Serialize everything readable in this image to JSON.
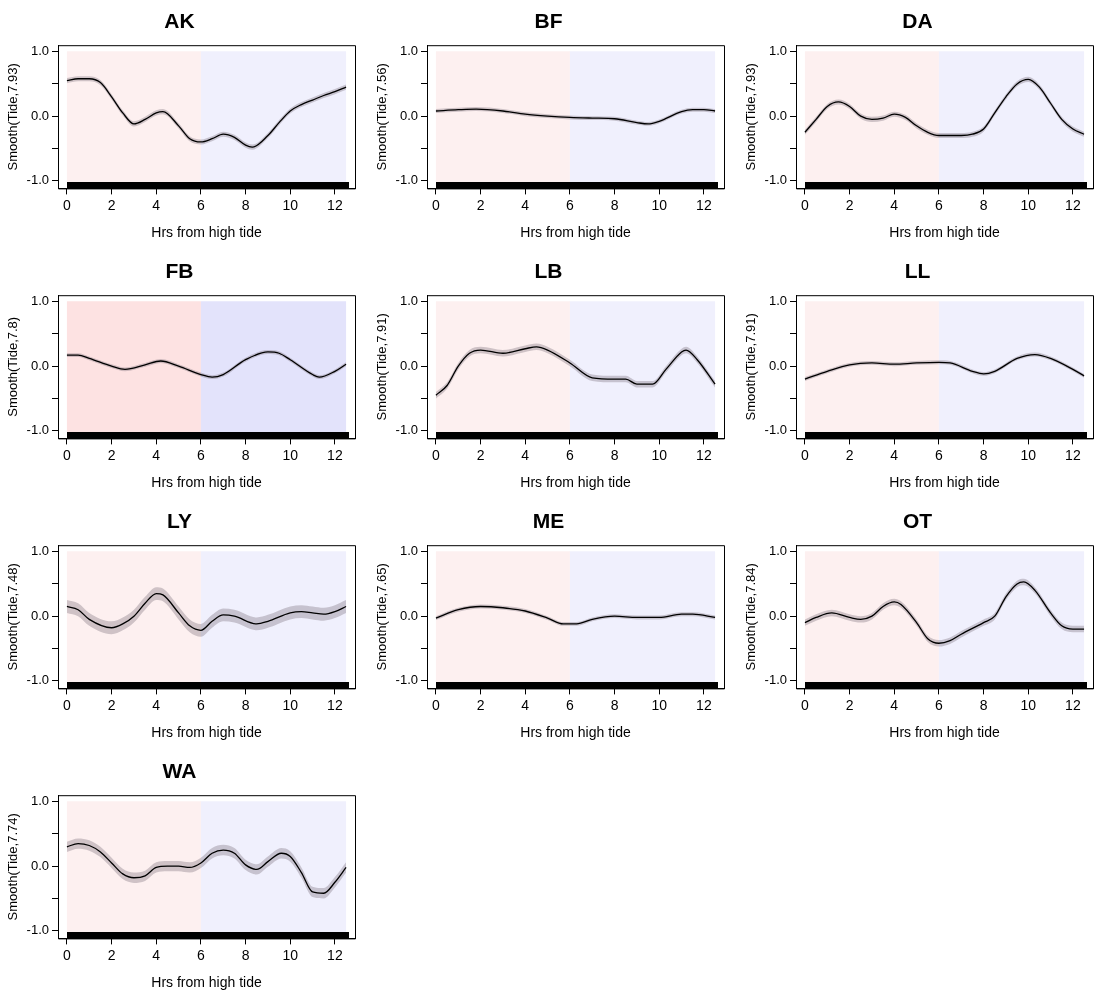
{
  "chart_data": [
    {
      "type": "line",
      "title": "AK",
      "xlabel": "Hrs from high tide",
      "ylabel": "Smooth(Tide,7.93)",
      "xlim": [
        -0.4,
        12.9
      ],
      "ylim": [
        -1.12,
        1.1
      ],
      "xticks": [
        0,
        2,
        4,
        6,
        8,
        10,
        12
      ],
      "yticks": [
        {
          "value": -1,
          "label": "-1.0"
        },
        {
          "value": -0.5,
          "label": null
        },
        {
          "value": 0,
          "label": "0.0"
        },
        {
          "value": 0.5,
          "label": null
        },
        {
          "value": 1,
          "label": "1.0"
        }
      ],
      "grid": false,
      "legend": false,
      "bands": [
        {
          "axis": "x",
          "from": 0,
          "to": 6,
          "color": "#fdf0f0"
        },
        {
          "axis": "x",
          "from": 6,
          "to": 12.5,
          "color": "#f0f0fd"
        }
      ],
      "x": [
        0,
        0.5,
        1,
        1.5,
        2,
        2.5,
        3,
        3.5,
        4,
        4.3,
        5,
        5.5,
        6,
        6.5,
        7,
        7.5,
        8,
        8.3,
        9,
        9.5,
        10,
        10.5,
        11,
        11.5,
        12,
        12.5
      ],
      "series": [
        {
          "color": "#000000",
          "values": [
            0.55,
            0.58,
            0.58,
            0.52,
            0.3,
            0.05,
            -0.12,
            -0.05,
            0.05,
            0.07,
            -0.15,
            -0.35,
            -0.4,
            -0.35,
            -0.28,
            -0.33,
            -0.45,
            -0.48,
            -0.3,
            -0.1,
            0.08,
            0.18,
            0.25,
            0.32,
            0.38,
            0.45
          ],
          "lower": [
            0.51,
            0.54,
            0.54,
            0.48,
            0.26,
            0.01,
            -0.16,
            -0.09,
            0.01,
            0.03,
            -0.19,
            -0.39,
            -0.44,
            -0.39,
            -0.32,
            -0.37,
            -0.49,
            -0.52,
            -0.34,
            -0.14,
            0.04,
            0.14,
            0.21,
            0.28,
            0.34,
            0.41
          ],
          "upper": [
            0.59,
            0.62,
            0.62,
            0.56,
            0.34,
            0.09,
            -0.08,
            -0.01,
            0.09,
            0.11,
            -0.11,
            -0.31,
            -0.36,
            -0.31,
            -0.24,
            -0.29,
            -0.41,
            -0.44,
            -0.26,
            -0.06,
            0.12,
            0.22,
            0.29,
            0.36,
            0.42,
            0.49
          ]
        }
      ]
    },
    {
      "type": "line",
      "title": "BF",
      "xlabel": "Hrs from high tide",
      "ylabel": "Smooth(Tide,7.56)",
      "xlim": [
        -0.4,
        12.9
      ],
      "ylim": [
        -1.12,
        1.1
      ],
      "xticks": [
        0,
        2,
        4,
        6,
        8,
        10,
        12
      ],
      "yticks": [
        {
          "value": -1,
          "label": "-1.0"
        },
        {
          "value": -0.5,
          "label": null
        },
        {
          "value": 0,
          "label": "0.0"
        },
        {
          "value": 0.5,
          "label": null
        },
        {
          "value": 1,
          "label": "1.0"
        }
      ],
      "grid": false,
      "legend": false,
      "bands": [
        {
          "axis": "x",
          "from": 0,
          "to": 6,
          "color": "#fdf0f0"
        },
        {
          "axis": "x",
          "from": 6,
          "to": 12.5,
          "color": "#f0f0fd"
        }
      ],
      "x": [
        0,
        1,
        1.8,
        3,
        4,
        5,
        6,
        7,
        8,
        9,
        9.5,
        10,
        11,
        11.5,
        12,
        12.5
      ],
      "series": [
        {
          "color": "#000000",
          "values": [
            0.08,
            0.1,
            0.11,
            0.08,
            0.03,
            0,
            -0.02,
            -0.03,
            -0.04,
            -0.1,
            -0.12,
            -0.08,
            0.07,
            0.1,
            0.1,
            0.08
          ],
          "lower": [
            0.05,
            0.07,
            0.08,
            0.05,
            0,
            -0.03,
            -0.05,
            -0.06,
            -0.07,
            -0.13,
            -0.15,
            -0.11,
            0.04,
            0.07,
            0.07,
            0.05
          ],
          "upper": [
            0.11,
            0.13,
            0.14,
            0.11,
            0.06,
            0.03,
            0.01,
            0,
            -0.01,
            -0.07,
            -0.09,
            -0.05,
            0.1,
            0.13,
            0.13,
            0.11
          ]
        }
      ]
    },
    {
      "type": "line",
      "title": "DA",
      "xlabel": "Hrs from high tide",
      "ylabel": "Smooth(Tide,7.93)",
      "xlim": [
        -0.4,
        12.9
      ],
      "ylim": [
        -1.12,
        1.1
      ],
      "xticks": [
        0,
        2,
        4,
        6,
        8,
        10,
        12
      ],
      "yticks": [
        {
          "value": -1,
          "label": "-1.0"
        },
        {
          "value": -0.5,
          "label": null
        },
        {
          "value": 0,
          "label": "0.0"
        },
        {
          "value": 0.5,
          "label": null
        },
        {
          "value": 1,
          "label": "1.0"
        }
      ],
      "grid": false,
      "legend": false,
      "bands": [
        {
          "axis": "x",
          "from": 0,
          "to": 6,
          "color": "#fdf0f0"
        },
        {
          "axis": "x",
          "from": 6,
          "to": 12.5,
          "color": "#f0f0fd"
        }
      ],
      "x": [
        0,
        0.5,
        1,
        1.5,
        2,
        2.5,
        3,
        3.5,
        4,
        4.5,
        5,
        5.5,
        6,
        7,
        7.5,
        8,
        8.5,
        9,
        9.5,
        10,
        10.5,
        11,
        11.5,
        12,
        12.5
      ],
      "series": [
        {
          "color": "#000000",
          "values": [
            -0.25,
            -0.05,
            0.15,
            0.22,
            0.15,
            0,
            -0.05,
            -0.03,
            0.03,
            -0.02,
            -0.15,
            -0.25,
            -0.3,
            -0.3,
            -0.28,
            -0.2,
            0.05,
            0.3,
            0.5,
            0.57,
            0.45,
            0.2,
            -0.05,
            -0.2,
            -0.28
          ],
          "lower": [
            -0.29,
            -0.09,
            0.11,
            0.18,
            0.11,
            -0.04,
            -0.09,
            -0.07,
            -0.01,
            -0.06,
            -0.19,
            -0.29,
            -0.34,
            -0.34,
            -0.32,
            -0.24,
            0.01,
            0.26,
            0.46,
            0.53,
            0.41,
            0.16,
            -0.09,
            -0.24,
            -0.32
          ],
          "upper": [
            -0.21,
            -0.01,
            0.19,
            0.26,
            0.19,
            0.04,
            -0.01,
            0.01,
            0.07,
            0.02,
            -0.11,
            -0.21,
            -0.26,
            -0.26,
            -0.24,
            -0.16,
            0.09,
            0.34,
            0.54,
            0.61,
            0.49,
            0.24,
            -0.01,
            -0.16,
            -0.24
          ]
        }
      ]
    },
    {
      "type": "line",
      "title": "FB",
      "xlabel": "Hrs from high tide",
      "ylabel": "Smooth(Tide,7.8)",
      "xlim": [
        -0.4,
        12.9
      ],
      "ylim": [
        -1.12,
        1.1
      ],
      "xticks": [
        0,
        2,
        4,
        6,
        8,
        10,
        12
      ],
      "yticks": [
        {
          "value": -1,
          "label": "-1.0"
        },
        {
          "value": -0.5,
          "label": null
        },
        {
          "value": 0,
          "label": "0.0"
        },
        {
          "value": 0.5,
          "label": null
        },
        {
          "value": 1,
          "label": "1.0"
        }
      ],
      "grid": false,
      "legend": false,
      "bands": [
        {
          "axis": "x",
          "from": 0,
          "to": 6,
          "color": "#fde2e2"
        },
        {
          "axis": "x",
          "from": 6,
          "to": 12.5,
          "color": "#e3e3fb"
        }
      ],
      "x": [
        0,
        0.5,
        1,
        2,
        2.6,
        3.5,
        4.2,
        5,
        6,
        6.5,
        7,
        8,
        9,
        9.5,
        10,
        11,
        11.3,
        12,
        12.5
      ],
      "series": [
        {
          "color": "#000000",
          "values": [
            0.17,
            0.17,
            0.12,
            0,
            -0.05,
            0.02,
            0.08,
            0,
            -0.13,
            -0.17,
            -0.13,
            0.1,
            0.22,
            0.2,
            0.1,
            -0.13,
            -0.17,
            -0.08,
            0.03
          ],
          "lower": [
            0.14,
            0.14,
            0.09,
            -0.03,
            -0.08,
            -0.01,
            0.05,
            -0.03,
            -0.16,
            -0.2,
            -0.16,
            0.07,
            0.19,
            0.17,
            0.07,
            -0.16,
            -0.2,
            -0.11,
            0
          ],
          "upper": [
            0.2,
            0.2,
            0.15,
            0.03,
            -0.02,
            0.05,
            0.11,
            0.03,
            -0.1,
            -0.14,
            -0.1,
            0.13,
            0.25,
            0.23,
            0.13,
            -0.1,
            -0.14,
            -0.05,
            0.06
          ]
        }
      ]
    },
    {
      "type": "line",
      "title": "LB",
      "xlabel": "Hrs from high tide",
      "ylabel": "Smooth(Tide,7.91)",
      "xlim": [
        -0.4,
        12.9
      ],
      "ylim": [
        -1.12,
        1.1
      ],
      "xticks": [
        0,
        2,
        4,
        6,
        8,
        10,
        12
      ],
      "yticks": [
        {
          "value": -1,
          "label": "-1.0"
        },
        {
          "value": -0.5,
          "label": null
        },
        {
          "value": 0,
          "label": "0.0"
        },
        {
          "value": 0.5,
          "label": null
        },
        {
          "value": 1,
          "label": "1.0"
        }
      ],
      "grid": false,
      "legend": false,
      "bands": [
        {
          "axis": "x",
          "from": 0,
          "to": 6,
          "color": "#fdf0f0"
        },
        {
          "axis": "x",
          "from": 6,
          "to": 12.5,
          "color": "#f0f0fd"
        }
      ],
      "x": [
        0,
        0.5,
        1,
        1.5,
        2,
        3,
        4,
        4.5,
        5,
        6,
        7,
        8,
        8.5,
        9,
        9.7,
        10.3,
        11,
        11.2,
        11.7,
        12.5
      ],
      "series": [
        {
          "color": "#000000",
          "values": [
            -0.45,
            -0.3,
            0,
            0.2,
            0.25,
            0.2,
            0.27,
            0.3,
            0.25,
            0.05,
            -0.18,
            -0.2,
            -0.2,
            -0.28,
            -0.28,
            -0.05,
            0.22,
            0.25,
            0.1,
            -0.28
          ],
          "lower": [
            -0.5,
            -0.35,
            -0.05,
            0.15,
            0.2,
            0.15,
            0.22,
            0.25,
            0.2,
            0,
            -0.23,
            -0.25,
            -0.25,
            -0.33,
            -0.33,
            -0.1,
            0.17,
            0.2,
            0.05,
            -0.33
          ],
          "upper": [
            -0.4,
            -0.25,
            0.05,
            0.25,
            0.3,
            0.25,
            0.32,
            0.35,
            0.3,
            0.1,
            -0.13,
            -0.15,
            -0.15,
            -0.23,
            -0.23,
            0,
            0.27,
            0.3,
            0.15,
            -0.23
          ]
        }
      ]
    },
    {
      "type": "line",
      "title": "LL",
      "xlabel": "Hrs from high tide",
      "ylabel": "Smooth(Tide,7.91)",
      "xlim": [
        -0.4,
        12.9
      ],
      "ylim": [
        -1.12,
        1.1
      ],
      "xticks": [
        0,
        2,
        4,
        6,
        8,
        10,
        12
      ],
      "yticks": [
        {
          "value": -1,
          "label": "-1.0"
        },
        {
          "value": -0.5,
          "label": null
        },
        {
          "value": 0,
          "label": "0.0"
        },
        {
          "value": 0.5,
          "label": null
        },
        {
          "value": 1,
          "label": "1.0"
        }
      ],
      "grid": false,
      "legend": false,
      "bands": [
        {
          "axis": "x",
          "from": 0,
          "to": 6,
          "color": "#fdf0f0"
        },
        {
          "axis": "x",
          "from": 6,
          "to": 12.5,
          "color": "#f0f0fd"
        }
      ],
      "x": [
        0,
        1,
        2,
        3,
        4,
        5,
        6,
        6.5,
        7.5,
        8,
        8.5,
        9.5,
        10.3,
        11,
        12,
        12.5
      ],
      "series": [
        {
          "color": "#000000",
          "values": [
            -0.2,
            -0.08,
            0.02,
            0.05,
            0.03,
            0.05,
            0.06,
            0.05,
            -0.08,
            -0.12,
            -0.08,
            0.12,
            0.18,
            0.12,
            -0.05,
            -0.15
          ],
          "lower": [
            -0.23,
            -0.11,
            -0.01,
            0.02,
            0,
            0.02,
            0.03,
            0.02,
            -0.11,
            -0.15,
            -0.11,
            0.09,
            0.15,
            0.09,
            -0.08,
            -0.18
          ],
          "upper": [
            -0.17,
            -0.05,
            0.05,
            0.08,
            0.06,
            0.08,
            0.09,
            0.08,
            -0.05,
            -0.09,
            -0.05,
            0.15,
            0.21,
            0.15,
            -0.02,
            -0.12
          ]
        }
      ]
    },
    {
      "type": "line",
      "title": "LY",
      "xlabel": "Hrs from high tide",
      "ylabel": "Smooth(Tide,7.48)",
      "xlim": [
        -0.4,
        12.9
      ],
      "ylim": [
        -1.12,
        1.1
      ],
      "xticks": [
        0,
        2,
        4,
        6,
        8,
        10,
        12
      ],
      "yticks": [
        {
          "value": -1,
          "label": "-1.0"
        },
        {
          "value": -0.5,
          "label": null
        },
        {
          "value": 0,
          "label": "0.0"
        },
        {
          "value": 0.5,
          "label": null
        },
        {
          "value": 1,
          "label": "1.0"
        }
      ],
      "grid": false,
      "legend": false,
      "bands": [
        {
          "axis": "x",
          "from": 0,
          "to": 6,
          "color": "#fdf0f0"
        },
        {
          "axis": "x",
          "from": 6,
          "to": 12.5,
          "color": "#f0f0fd"
        }
      ],
      "x": [
        0,
        0.5,
        1,
        2,
        2.5,
        3,
        3.5,
        4,
        4.3,
        5,
        5.5,
        6,
        6.5,
        7,
        7.5,
        8.5,
        9,
        10,
        10.5,
        11,
        11.5,
        12,
        12.5
      ],
      "series": [
        {
          "color": "#000000",
          "values": [
            0.15,
            0.1,
            -0.05,
            -0.18,
            -0.12,
            0,
            0.2,
            0.35,
            0.33,
            0.05,
            -0.15,
            -0.22,
            -0.08,
            0.02,
            0,
            -0.12,
            -0.08,
            0.05,
            0.07,
            0.05,
            0.03,
            0.07,
            0.15
          ],
          "lower": [
            0.05,
            0,
            -0.15,
            -0.28,
            -0.22,
            -0.1,
            0.1,
            0.25,
            0.23,
            -0.05,
            -0.25,
            -0.32,
            -0.18,
            -0.08,
            -0.1,
            -0.22,
            -0.18,
            -0.05,
            -0.03,
            -0.05,
            -0.07,
            -0.03,
            0.05
          ],
          "upper": [
            0.25,
            0.2,
            0.05,
            -0.08,
            -0.02,
            0.1,
            0.3,
            0.45,
            0.43,
            0.15,
            -0.05,
            -0.12,
            0.02,
            0.12,
            0.1,
            -0.02,
            0.02,
            0.15,
            0.17,
            0.15,
            0.13,
            0.17,
            0.25
          ]
        }
      ]
    },
    {
      "type": "line",
      "title": "ME",
      "xlabel": "Hrs from high tide",
      "ylabel": "Smooth(Tide,7.65)",
      "xlim": [
        -0.4,
        12.9
      ],
      "ylim": [
        -1.12,
        1.1
      ],
      "xticks": [
        0,
        2,
        4,
        6,
        8,
        10,
        12
      ],
      "yticks": [
        {
          "value": -1,
          "label": "-1.0"
        },
        {
          "value": -0.5,
          "label": null
        },
        {
          "value": 0,
          "label": "0.0"
        },
        {
          "value": 0.5,
          "label": null
        },
        {
          "value": 1,
          "label": "1.0"
        }
      ],
      "grid": false,
      "legend": false,
      "bands": [
        {
          "axis": "x",
          "from": 0,
          "to": 6,
          "color": "#fdf0f0"
        },
        {
          "axis": "x",
          "from": 6,
          "to": 12.5,
          "color": "#f0f0fd"
        }
      ],
      "x": [
        0,
        1,
        2,
        3,
        4,
        5,
        5.7,
        6.3,
        7,
        8,
        9,
        10,
        11,
        11.5,
        12.5
      ],
      "series": [
        {
          "color": "#000000",
          "values": [
            -0.03,
            0.1,
            0.15,
            0.13,
            0.08,
            -0.03,
            -0.12,
            -0.12,
            -0.05,
            0,
            -0.02,
            -0.02,
            0.03,
            0.03,
            -0.02
          ],
          "lower": [
            -0.06,
            0.07,
            0.12,
            0.1,
            0.05,
            -0.06,
            -0.15,
            -0.15,
            -0.08,
            -0.03,
            -0.05,
            -0.05,
            0,
            0,
            -0.05
          ],
          "upper": [
            0,
            0.13,
            0.18,
            0.16,
            0.11,
            0,
            -0.09,
            -0.09,
            -0.02,
            0.03,
            0.01,
            0.01,
            0.06,
            0.06,
            0.01
          ]
        }
      ]
    },
    {
      "type": "line",
      "title": "OT",
      "xlabel": "Hrs from high tide",
      "ylabel": "Smooth(Tide,7.84)",
      "xlim": [
        -0.4,
        12.9
      ],
      "ylim": [
        -1.12,
        1.1
      ],
      "xticks": [
        0,
        2,
        4,
        6,
        8,
        10,
        12
      ],
      "yticks": [
        {
          "value": -1,
          "label": "-1.0"
        },
        {
          "value": -0.5,
          "label": null
        },
        {
          "value": 0,
          "label": "0.0"
        },
        {
          "value": 0.5,
          "label": null
        },
        {
          "value": 1,
          "label": "1.0"
        }
      ],
      "grid": false,
      "legend": false,
      "bands": [
        {
          "axis": "x",
          "from": 0,
          "to": 6,
          "color": "#fdf0f0"
        },
        {
          "axis": "x",
          "from": 6,
          "to": 12.5,
          "color": "#f0f0fd"
        }
      ],
      "x": [
        0,
        0.5,
        1.2,
        2,
        2.5,
        3,
        3.5,
        4,
        4.3,
        5,
        5.5,
        6,
        6.5,
        7,
        8,
        8.5,
        9,
        9.5,
        9.8,
        10.3,
        11,
        11.5,
        12,
        12.5
      ],
      "series": [
        {
          "color": "#000000",
          "values": [
            -0.1,
            -0.02,
            0.05,
            -0.02,
            -0.05,
            0,
            0.15,
            0.22,
            0.18,
            -0.1,
            -0.35,
            -0.42,
            -0.38,
            -0.28,
            -0.1,
            0,
            0.3,
            0.5,
            0.53,
            0.4,
            0.05,
            -0.15,
            -0.2,
            -0.2
          ],
          "lower": [
            -0.15,
            -0.07,
            0,
            -0.07,
            -0.1,
            -0.05,
            0.1,
            0.17,
            0.13,
            -0.15,
            -0.4,
            -0.47,
            -0.43,
            -0.33,
            -0.15,
            -0.05,
            0.25,
            0.45,
            0.48,
            0.35,
            0,
            -0.2,
            -0.25,
            -0.25
          ],
          "upper": [
            -0.05,
            0.03,
            0.1,
            0.03,
            0,
            0.05,
            0.2,
            0.27,
            0.23,
            -0.05,
            -0.3,
            -0.37,
            -0.33,
            -0.23,
            -0.05,
            0.05,
            0.35,
            0.55,
            0.58,
            0.45,
            0.1,
            -0.1,
            -0.15,
            -0.15
          ]
        }
      ]
    },
    {
      "type": "line",
      "title": "WA",
      "xlabel": "Hrs from high tide",
      "ylabel": "Smooth(Tide,7.74)",
      "xlim": [
        -0.4,
        12.9
      ],
      "ylim": [
        -1.12,
        1.1
      ],
      "xticks": [
        0,
        2,
        4,
        6,
        8,
        10,
        12
      ],
      "yticks": [
        {
          "value": -1,
          "label": "-1.0"
        },
        {
          "value": -0.5,
          "label": null
        },
        {
          "value": 0,
          "label": "0.0"
        },
        {
          "value": 0.5,
          "label": null
        },
        {
          "value": 1,
          "label": "1.0"
        }
      ],
      "grid": false,
      "legend": false,
      "bands": [
        {
          "axis": "x",
          "from": 0,
          "to": 6,
          "color": "#fdf0f0"
        },
        {
          "axis": "x",
          "from": 6,
          "to": 12.5,
          "color": "#f0f0fd"
        }
      ],
      "x": [
        0,
        0.5,
        1,
        1.5,
        2,
        2.5,
        3,
        3.5,
        4,
        4.5,
        5,
        5.5,
        6,
        6.5,
        7,
        7.5,
        8,
        8.5,
        9,
        9.6,
        10,
        10.5,
        11,
        11.5,
        12,
        12.5
      ],
      "series": [
        {
          "color": "#000000",
          "values": [
            0.3,
            0.35,
            0.32,
            0.22,
            0.05,
            -0.12,
            -0.18,
            -0.15,
            -0.02,
            0,
            0,
            -0.02,
            0.05,
            0.2,
            0.25,
            0.2,
            0.02,
            -0.05,
            0.07,
            0.2,
            0.15,
            -0.1,
            -0.4,
            -0.42,
            -0.25,
            -0.02
          ],
          "lower": [
            0.22,
            0.27,
            0.24,
            0.14,
            -0.03,
            -0.2,
            -0.26,
            -0.23,
            -0.1,
            -0.08,
            -0.08,
            -0.1,
            -0.03,
            0.12,
            0.17,
            0.12,
            -0.06,
            -0.13,
            -0.01,
            0.12,
            0.07,
            -0.18,
            -0.48,
            -0.5,
            -0.33,
            -0.1
          ],
          "upper": [
            0.38,
            0.43,
            0.4,
            0.3,
            0.13,
            -0.04,
            -0.1,
            -0.07,
            0.06,
            0.08,
            0.08,
            0.06,
            0.13,
            0.28,
            0.33,
            0.28,
            0.1,
            0.03,
            0.15,
            0.28,
            0.23,
            -0.02,
            -0.32,
            -0.34,
            -0.17,
            0.06
          ]
        }
      ]
    }
  ]
}
